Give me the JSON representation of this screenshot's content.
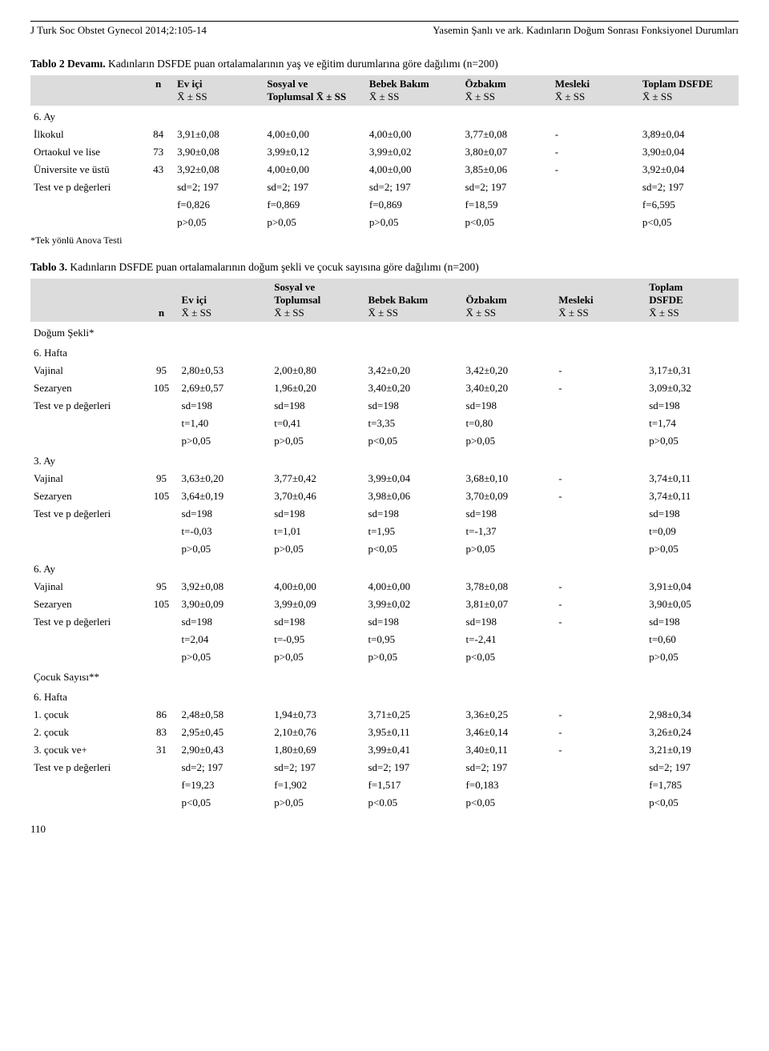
{
  "running_head_left": "J Turk Soc Obstet Gynecol 2014;2:105-14",
  "running_head_right": "Yasemin Şanlı ve ark. Kadınların Doğum Sonrası Fonksiyonel Durumları",
  "table2": {
    "title_bold": "Tablo 2 Devamı.",
    "title_rest": "Kadınların DSFDE puan ortalamalarının yaş ve eğitim durumlarına göre dağılımı (n=200)",
    "col_headers": {
      "n": "n",
      "c1_top": "Ev içi",
      "c1_bot": "X̄ ± SS",
      "c2_top": "Sosyal ve",
      "c2_bot": "Toplumsal X̄ ± SS",
      "c3_top": "Bebek Bakım",
      "c3_bot": "X̄ ± SS",
      "c4_top": "Özbakım",
      "c4_bot": "X̄ ± SS",
      "c5_top": "Mesleki",
      "c5_bot": "X̄ ± SS",
      "c6_top": "Toplam DSFDE",
      "c6_bot": "X̄ ± SS"
    },
    "section": "6. Ay",
    "rows": [
      {
        "label": "İlkokul",
        "n": "84",
        "v": [
          "3,91±0,08",
          "4,00±0,00",
          "4,00±0,00",
          "3,77±0,08",
          "-",
          "3,89±0,04"
        ]
      },
      {
        "label": "Ortaokul ve lise",
        "n": "73",
        "v": [
          "3,90±0,08",
          "3,99±0,12",
          "3,99±0,02",
          "3,80±0,07",
          "-",
          "3,90±0,04"
        ]
      },
      {
        "label": "Üniversite ve üstü",
        "n": "43",
        "v": [
          "3,92±0,08",
          "4,00±0,00",
          "4,00±0,00",
          "3,85±0,06",
          "-",
          "3,92±0,04"
        ]
      }
    ],
    "stats": [
      {
        "label": "Test ve p değerleri",
        "v": [
          "sd=2; 197",
          "sd=2; 197",
          "sd=2; 197",
          "sd=2; 197",
          "",
          "sd=2; 197"
        ]
      },
      {
        "label": "",
        "v": [
          "f=0,826",
          "f=0,869",
          "f=0,869",
          "f=18,59",
          "",
          "f=6,595"
        ]
      },
      {
        "label": "",
        "v": [
          "p>0,05",
          "p>0,05",
          "p>0,05",
          "p<0,05",
          "",
          "p<0,05"
        ]
      }
    ],
    "footnote": "*Tek yönlü Anova Testi"
  },
  "table3": {
    "title_bold": "Tablo 3.",
    "title_rest": "Kadınların DSFDE puan ortalamalarının doğum şekli ve çocuk sayısına göre dağılımı (n=200)",
    "col_headers": {
      "n": "n",
      "c1_top": "Ev içi",
      "c1_bot": "X̄ ± SS",
      "c2_top1": "Sosyal ve",
      "c2_top2": "Toplumsal",
      "c2_bot": "X̄ ± SS",
      "c3_top": "Bebek Bakım",
      "c3_bot": "X̄ ± SS",
      "c4_top": "Özbakım",
      "c4_bot": "X̄ ± SS",
      "c5_top": "Mesleki",
      "c5_bot": "X̄ ± SS",
      "c6_top1": "Toplam",
      "c6_top2": "DSFDE",
      "c6_bot": "X̄ ± SS"
    },
    "sections": [
      {
        "title_major": "Doğum Şekli*",
        "title_minor": "6. Hafta",
        "rows": [
          {
            "label": "Vajinal",
            "n": "95",
            "v": [
              "2,80±0,53",
              "2,00±0,80",
              "3,42±0,20",
              "3,42±0,20",
              "-",
              "3,17±0,31"
            ]
          },
          {
            "label": "Sezaryen",
            "n": "105",
            "v": [
              "2,69±0,57",
              "1,96±0,20",
              "3,40±0,20",
              "3,40±0,20",
              "-",
              "3,09±0,32"
            ]
          }
        ],
        "stats": [
          {
            "label": "Test ve p değerleri",
            "v": [
              "sd=198",
              "sd=198",
              "sd=198",
              "sd=198",
              "",
              "sd=198"
            ]
          },
          {
            "label": "",
            "v": [
              "t=1,40",
              "t=0,41",
              "t=3,35",
              "t=0,80",
              "",
              "t=1,74"
            ]
          },
          {
            "label": "",
            "v": [
              "p>0,05",
              "p>0,05",
              "p<0,05",
              "p>0,05",
              "",
              "p>0,05"
            ]
          }
        ]
      },
      {
        "title_minor": "3. Ay",
        "rows": [
          {
            "label": "Vajinal",
            "n": "95",
            "v": [
              "3,63±0,20",
              "3,77±0,42",
              "3,99±0,04",
              "3,68±0,10",
              "-",
              "3,74±0,11"
            ]
          },
          {
            "label": "Sezaryen",
            "n": "105",
            "v": [
              "3,64±0,19",
              "3,70±0,46",
              "3,98±0,06",
              "3,70±0,09",
              "-",
              "3,74±0,11"
            ]
          }
        ],
        "stats": [
          {
            "label": "Test ve p değerleri",
            "v": [
              "sd=198",
              "sd=198",
              "sd=198",
              "sd=198",
              "",
              "sd=198"
            ]
          },
          {
            "label": "",
            "v": [
              "t=-0,03",
              "t=1,01",
              "t=1,95",
              "t=-1,37",
              "",
              "t=0,09"
            ]
          },
          {
            "label": "",
            "v": [
              "p>0,05",
              "p>0,05",
              "p<0,05",
              "p>0,05",
              "",
              "p>0,05"
            ]
          }
        ]
      },
      {
        "title_minor": "6. Ay",
        "rows": [
          {
            "label": "Vajinal",
            "n": "95",
            "v": [
              "3,92±0,08",
              "4,00±0,00",
              "4,00±0,00",
              "3,78±0,08",
              "-",
              "3,91±0,04"
            ]
          },
          {
            "label": "Sezaryen",
            "n": "105",
            "v": [
              "3,90±0,09",
              "3,99±0,09",
              "3,99±0,02",
              "3,81±0,07",
              "-",
              "3,90±0,05"
            ]
          }
        ],
        "stats": [
          {
            "label": "Test ve p değerleri",
            "v": [
              "sd=198",
              "sd=198",
              "sd=198",
              "sd=198",
              "-",
              "sd=198"
            ]
          },
          {
            "label": "",
            "v": [
              "t=2,04",
              "t=-0,95",
              "t=0,95",
              "t=-2,41",
              "",
              "t=0,60"
            ]
          },
          {
            "label": "",
            "v": [
              "p>0,05",
              "p>0,05",
              "p>0,05",
              "p<0,05",
              "",
              "p>0,05"
            ]
          }
        ]
      },
      {
        "title_major": "Çocuk Sayısı**",
        "title_minor": "6. Hafta",
        "rows": [
          {
            "label": "1. çocuk",
            "n": "86",
            "v": [
              "2,48±0,58",
              "1,94±0,73",
              "3,71±0,25",
              "3,36±0,25",
              "-",
              "2,98±0,34"
            ]
          },
          {
            "label": "2. çocuk",
            "n": "83",
            "v": [
              "2,95±0,45",
              "2,10±0,76",
              "3,95±0,11",
              "3,46±0,14",
              "-",
              "3,26±0,24"
            ]
          },
          {
            "label": "3. çocuk ve+",
            "n": "31",
            "v": [
              "2,90±0,43",
              "1,80±0,69",
              "3,99±0,41",
              "3,40±0,11",
              "-",
              "3,21±0,19"
            ]
          }
        ],
        "stats": [
          {
            "label": "Test ve p değerleri",
            "v": [
              "sd=2; 197",
              "sd=2; 197",
              "sd=2; 197",
              "sd=2; 197",
              "",
              "sd=2; 197"
            ]
          },
          {
            "label": "",
            "v": [
              "f=19,23",
              "f=1,902",
              "f=1,517",
              "f=0,183",
              "",
              "f=1,785"
            ]
          },
          {
            "label": "",
            "v": [
              "p<0,05",
              "p>0,05",
              "p<0.05",
              "p<0,05",
              "",
              "p<0,05"
            ]
          }
        ]
      }
    ]
  },
  "page_number": "110"
}
